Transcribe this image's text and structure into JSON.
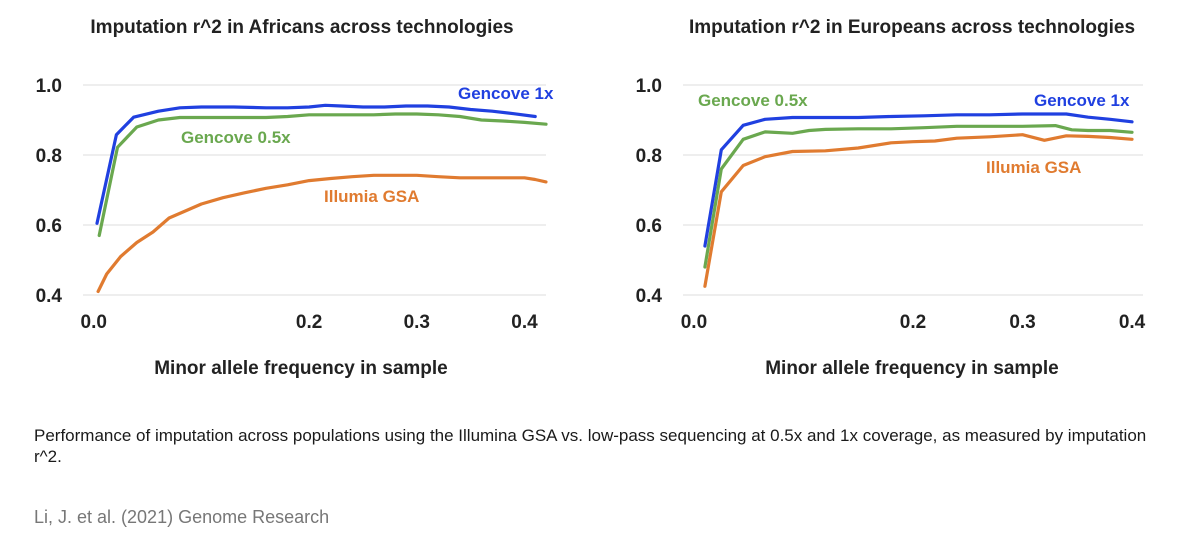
{
  "chart_data": [
    {
      "type": "line",
      "title": "Imputation r^2 in Africans across technologies",
      "xlabel": "Minor allele frequency in sample",
      "ylabel": "",
      "xlim": [
        -0.01,
        0.42
      ],
      "ylim": [
        0.4,
        1.0
      ],
      "xticks": [
        "0.0",
        "0.2",
        "0.3",
        "0.4"
      ],
      "xtick_values": [
        0.0,
        0.2,
        0.3,
        0.4
      ],
      "yticks": [
        "0.4",
        "0.6",
        "0.8",
        "1.0"
      ],
      "ytick_values": [
        0.4,
        0.6,
        0.8,
        1.0
      ],
      "grid": true,
      "series": [
        {
          "name": "Gencove 1x",
          "color": "#2040e0",
          "x": [
            0.003,
            0.021,
            0.037,
            0.06,
            0.08,
            0.1,
            0.13,
            0.16,
            0.18,
            0.2,
            0.215,
            0.23,
            0.25,
            0.27,
            0.29,
            0.31,
            0.33,
            0.35,
            0.37,
            0.39,
            0.41
          ],
          "y": [
            0.605,
            0.858,
            0.908,
            0.925,
            0.935,
            0.937,
            0.937,
            0.935,
            0.935,
            0.937,
            0.942,
            0.94,
            0.937,
            0.937,
            0.94,
            0.94,
            0.937,
            0.93,
            0.925,
            0.918,
            0.91
          ]
        },
        {
          "name": "Gencove 0.5x",
          "color": "#6aa84f",
          "x": [
            0.005,
            0.022,
            0.04,
            0.06,
            0.08,
            0.1,
            0.13,
            0.16,
            0.18,
            0.2,
            0.22,
            0.24,
            0.26,
            0.28,
            0.3,
            0.32,
            0.34,
            0.36,
            0.38,
            0.4,
            0.42
          ],
          "y": [
            0.57,
            0.822,
            0.88,
            0.9,
            0.907,
            0.907,
            0.907,
            0.907,
            0.91,
            0.915,
            0.915,
            0.915,
            0.915,
            0.917,
            0.917,
            0.915,
            0.91,
            0.9,
            0.897,
            0.893,
            0.888
          ]
        },
        {
          "name": "Illumia GSA",
          "color": "#e07b30",
          "x": [
            0.004,
            0.012,
            0.025,
            0.04,
            0.055,
            0.07,
            0.085,
            0.1,
            0.12,
            0.14,
            0.16,
            0.18,
            0.2,
            0.22,
            0.24,
            0.26,
            0.28,
            0.3,
            0.32,
            0.34,
            0.36,
            0.38,
            0.4,
            0.41,
            0.42
          ],
          "y": [
            0.41,
            0.46,
            0.51,
            0.55,
            0.58,
            0.62,
            0.64,
            0.66,
            0.678,
            0.692,
            0.705,
            0.715,
            0.727,
            0.733,
            0.738,
            0.742,
            0.742,
            0.742,
            0.738,
            0.735,
            0.735,
            0.735,
            0.735,
            0.73,
            0.723
          ]
        }
      ],
      "labels": [
        {
          "text": "Gencove 1x",
          "color": "#2040e0"
        },
        {
          "text": "Gencove 0.5x",
          "color": "#6aa84f"
        },
        {
          "text": "Illumia GSA",
          "color": "#e07b30"
        }
      ]
    },
    {
      "type": "line",
      "title": "Imputation r^2 in Europeans across technologies",
      "xlabel": "Minor allele frequency in sample",
      "ylabel": "",
      "xlim": [
        -0.01,
        0.41
      ],
      "ylim": [
        0.4,
        1.0
      ],
      "xticks": [
        "0.0",
        "0.2",
        "0.3",
        "0.4"
      ],
      "xtick_values": [
        0.0,
        0.2,
        0.3,
        0.4
      ],
      "yticks": [
        "0.4",
        "0.6",
        "0.8",
        "1.0"
      ],
      "ytick_values": [
        0.4,
        0.6,
        0.8,
        1.0
      ],
      "grid": true,
      "series": [
        {
          "name": "Gencove 1x",
          "color": "#2040e0",
          "x": [
            0.01,
            0.025,
            0.045,
            0.065,
            0.09,
            0.12,
            0.15,
            0.18,
            0.21,
            0.24,
            0.27,
            0.3,
            0.32,
            0.34,
            0.36,
            0.38,
            0.4
          ],
          "y": [
            0.54,
            0.815,
            0.885,
            0.902,
            0.907,
            0.907,
            0.907,
            0.91,
            0.912,
            0.915,
            0.915,
            0.917,
            0.917,
            0.917,
            0.908,
            0.902,
            0.895
          ]
        },
        {
          "name": "Gencove 0.5x",
          "color": "#6aa84f",
          "x": [
            0.01,
            0.025,
            0.045,
            0.065,
            0.09,
            0.105,
            0.12,
            0.15,
            0.18,
            0.21,
            0.24,
            0.27,
            0.3,
            0.33,
            0.345,
            0.36,
            0.38,
            0.4
          ],
          "y": [
            0.48,
            0.76,
            0.845,
            0.866,
            0.862,
            0.87,
            0.873,
            0.875,
            0.875,
            0.878,
            0.882,
            0.882,
            0.882,
            0.884,
            0.872,
            0.87,
            0.87,
            0.865
          ]
        },
        {
          "name": "Illumia GSA",
          "color": "#e07b30",
          "x": [
            0.01,
            0.025,
            0.045,
            0.065,
            0.09,
            0.12,
            0.15,
            0.18,
            0.2,
            0.22,
            0.24,
            0.27,
            0.3,
            0.32,
            0.34,
            0.36,
            0.38,
            0.4
          ],
          "y": [
            0.425,
            0.695,
            0.77,
            0.795,
            0.81,
            0.812,
            0.82,
            0.835,
            0.838,
            0.84,
            0.848,
            0.852,
            0.858,
            0.842,
            0.855,
            0.853,
            0.85,
            0.845
          ]
        }
      ],
      "labels": [
        {
          "text": "Gencove 1x",
          "color": "#2040e0"
        },
        {
          "text": "Gencove 0.5x",
          "color": "#6aa84f"
        },
        {
          "text": "Illumia GSA",
          "color": "#e07b30"
        }
      ]
    }
  ],
  "caption": "Performance of imputation across populations using the Illumina GSA vs. low-pass sequencing at 0.5x and 1x coverage, as measured by imputation r^2.",
  "citation": "Li, J. et al. (2021) Genome Research"
}
